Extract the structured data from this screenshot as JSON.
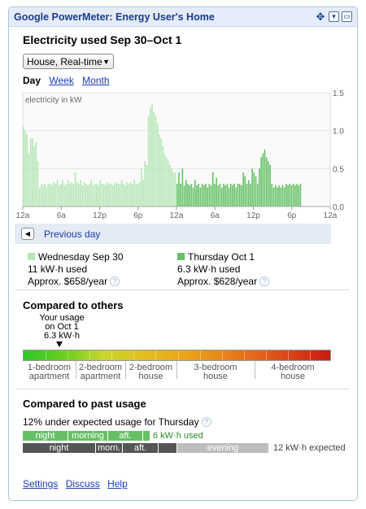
{
  "window": {
    "title": "Google PowerMeter: Energy User's Home"
  },
  "header": {
    "title": "Electricity used Sep 30–Oct 1"
  },
  "source_select": {
    "value": "House, Real-time"
  },
  "tabs": {
    "day": "Day",
    "week": "Week",
    "month": "Month"
  },
  "chart_data": {
    "type": "bar",
    "ylabel": "electricity in kW",
    "ylim": [
      0,
      1.5
    ],
    "yticks": [
      "1.5",
      "1.0",
      "0.5",
      "0.0"
    ],
    "xticks": [
      "12a",
      "6a",
      "12p",
      "6p",
      "12a",
      "6a",
      "12p",
      "6p",
      "12a"
    ],
    "series": [
      {
        "name": "Wednesday Sep 30",
        "color": "#b7e6b7",
        "values": [
          1.05,
          1.0,
          0.95,
          0.7,
          0.9,
          0.9,
          0.8,
          0.85,
          0.6,
          0.25,
          0.3,
          0.28,
          0.3,
          0.26,
          0.3,
          0.3,
          0.28,
          0.32,
          0.3,
          0.35,
          0.28,
          0.3,
          0.35,
          0.28,
          0.3,
          0.35,
          0.3,
          0.32,
          0.3,
          0.45,
          0.32,
          0.3,
          0.35,
          0.28,
          0.32,
          0.3,
          0.28,
          0.3,
          0.35,
          0.28,
          0.3,
          0.3,
          0.28,
          0.35,
          0.3,
          0.3,
          0.28,
          0.32,
          0.3,
          0.3,
          0.28,
          0.3,
          0.32,
          0.3,
          0.3,
          0.35,
          0.3,
          0.28,
          0.32,
          0.3,
          0.32,
          0.3,
          0.35,
          0.3,
          0.3,
          0.32,
          0.5,
          0.35,
          0.6,
          0.55,
          1.2,
          1.3,
          1.35,
          1.25,
          1.2,
          1.1,
          0.95,
          0.9,
          0.8,
          0.7,
          0.65,
          0.6,
          0.55,
          0.5,
          0.45,
          0.45
        ]
      },
      {
        "name": "Thursday Oct 1",
        "color": "#66c166",
        "values": [
          0.3,
          0.45,
          0.3,
          0.5,
          0.28,
          0.35,
          0.3,
          0.28,
          0.3,
          0.25,
          0.35,
          0.28,
          0.3,
          0.25,
          0.3,
          0.28,
          0.3,
          0.25,
          0.3,
          0.28,
          0.45,
          0.3,
          0.38,
          0.28,
          0.3,
          0.25,
          0.3,
          0.28,
          0.3,
          0.25,
          0.3,
          0.28,
          0.3,
          0.25,
          0.3,
          0.3,
          0.28,
          0.45,
          0.4,
          0.3,
          0.35,
          0.3,
          0.5,
          0.45,
          0.4,
          0.3,
          0.5,
          0.65,
          0.7,
          0.75,
          0.65,
          0.6,
          0.55,
          0.3,
          0.25,
          0.28,
          0.25,
          0.28,
          0.25,
          0.28,
          0.25,
          0.3,
          0.28,
          0.3,
          0.28,
          0.3,
          0.28,
          0.3,
          0.28,
          0.3
        ]
      }
    ]
  },
  "prev_day": {
    "label": "Previous day"
  },
  "day_stats": [
    {
      "name": "Wednesday Sep 30",
      "usage": "11 kW·h used",
      "cost": "Approx. $658/year",
      "color": "#b7e6b7"
    },
    {
      "name": "Thursday Oct 1",
      "usage": "6.3 kW·h used",
      "cost": "Approx. $628/year",
      "color": "#66c166"
    }
  ],
  "help_icon": "?",
  "compare_others": {
    "title": "Compared to others",
    "your_usage_lines": [
      "Your usage",
      "on Oct 1",
      "6.3 kW·h"
    ],
    "your_usage_level": 0.12,
    "categories": [
      {
        "line1": "1-bedroom",
        "line2": "apartment"
      },
      {
        "line1": "2-bedroom",
        "line2": "apartment"
      },
      {
        "line1": "2-bedroom",
        "line2": "house"
      },
      {
        "line1": "3-bedroom",
        "line2": "house"
      },
      {
        "line1": "4-bedroom",
        "line2": "house"
      }
    ]
  },
  "compare_past": {
    "title": "Compared to past usage",
    "summary": "12% under expected usage for Thursday",
    "actual_segments": [
      "night",
      "morning",
      "aft."
    ],
    "actual_label": "6 kW·h used",
    "expected_segments": [
      "night",
      "morn.",
      "aft.",
      "",
      "evening"
    ],
    "expected_label": "12 kW·h expected"
  },
  "footer_links": {
    "settings": "Settings",
    "discuss": "Discuss",
    "help": "Help"
  }
}
